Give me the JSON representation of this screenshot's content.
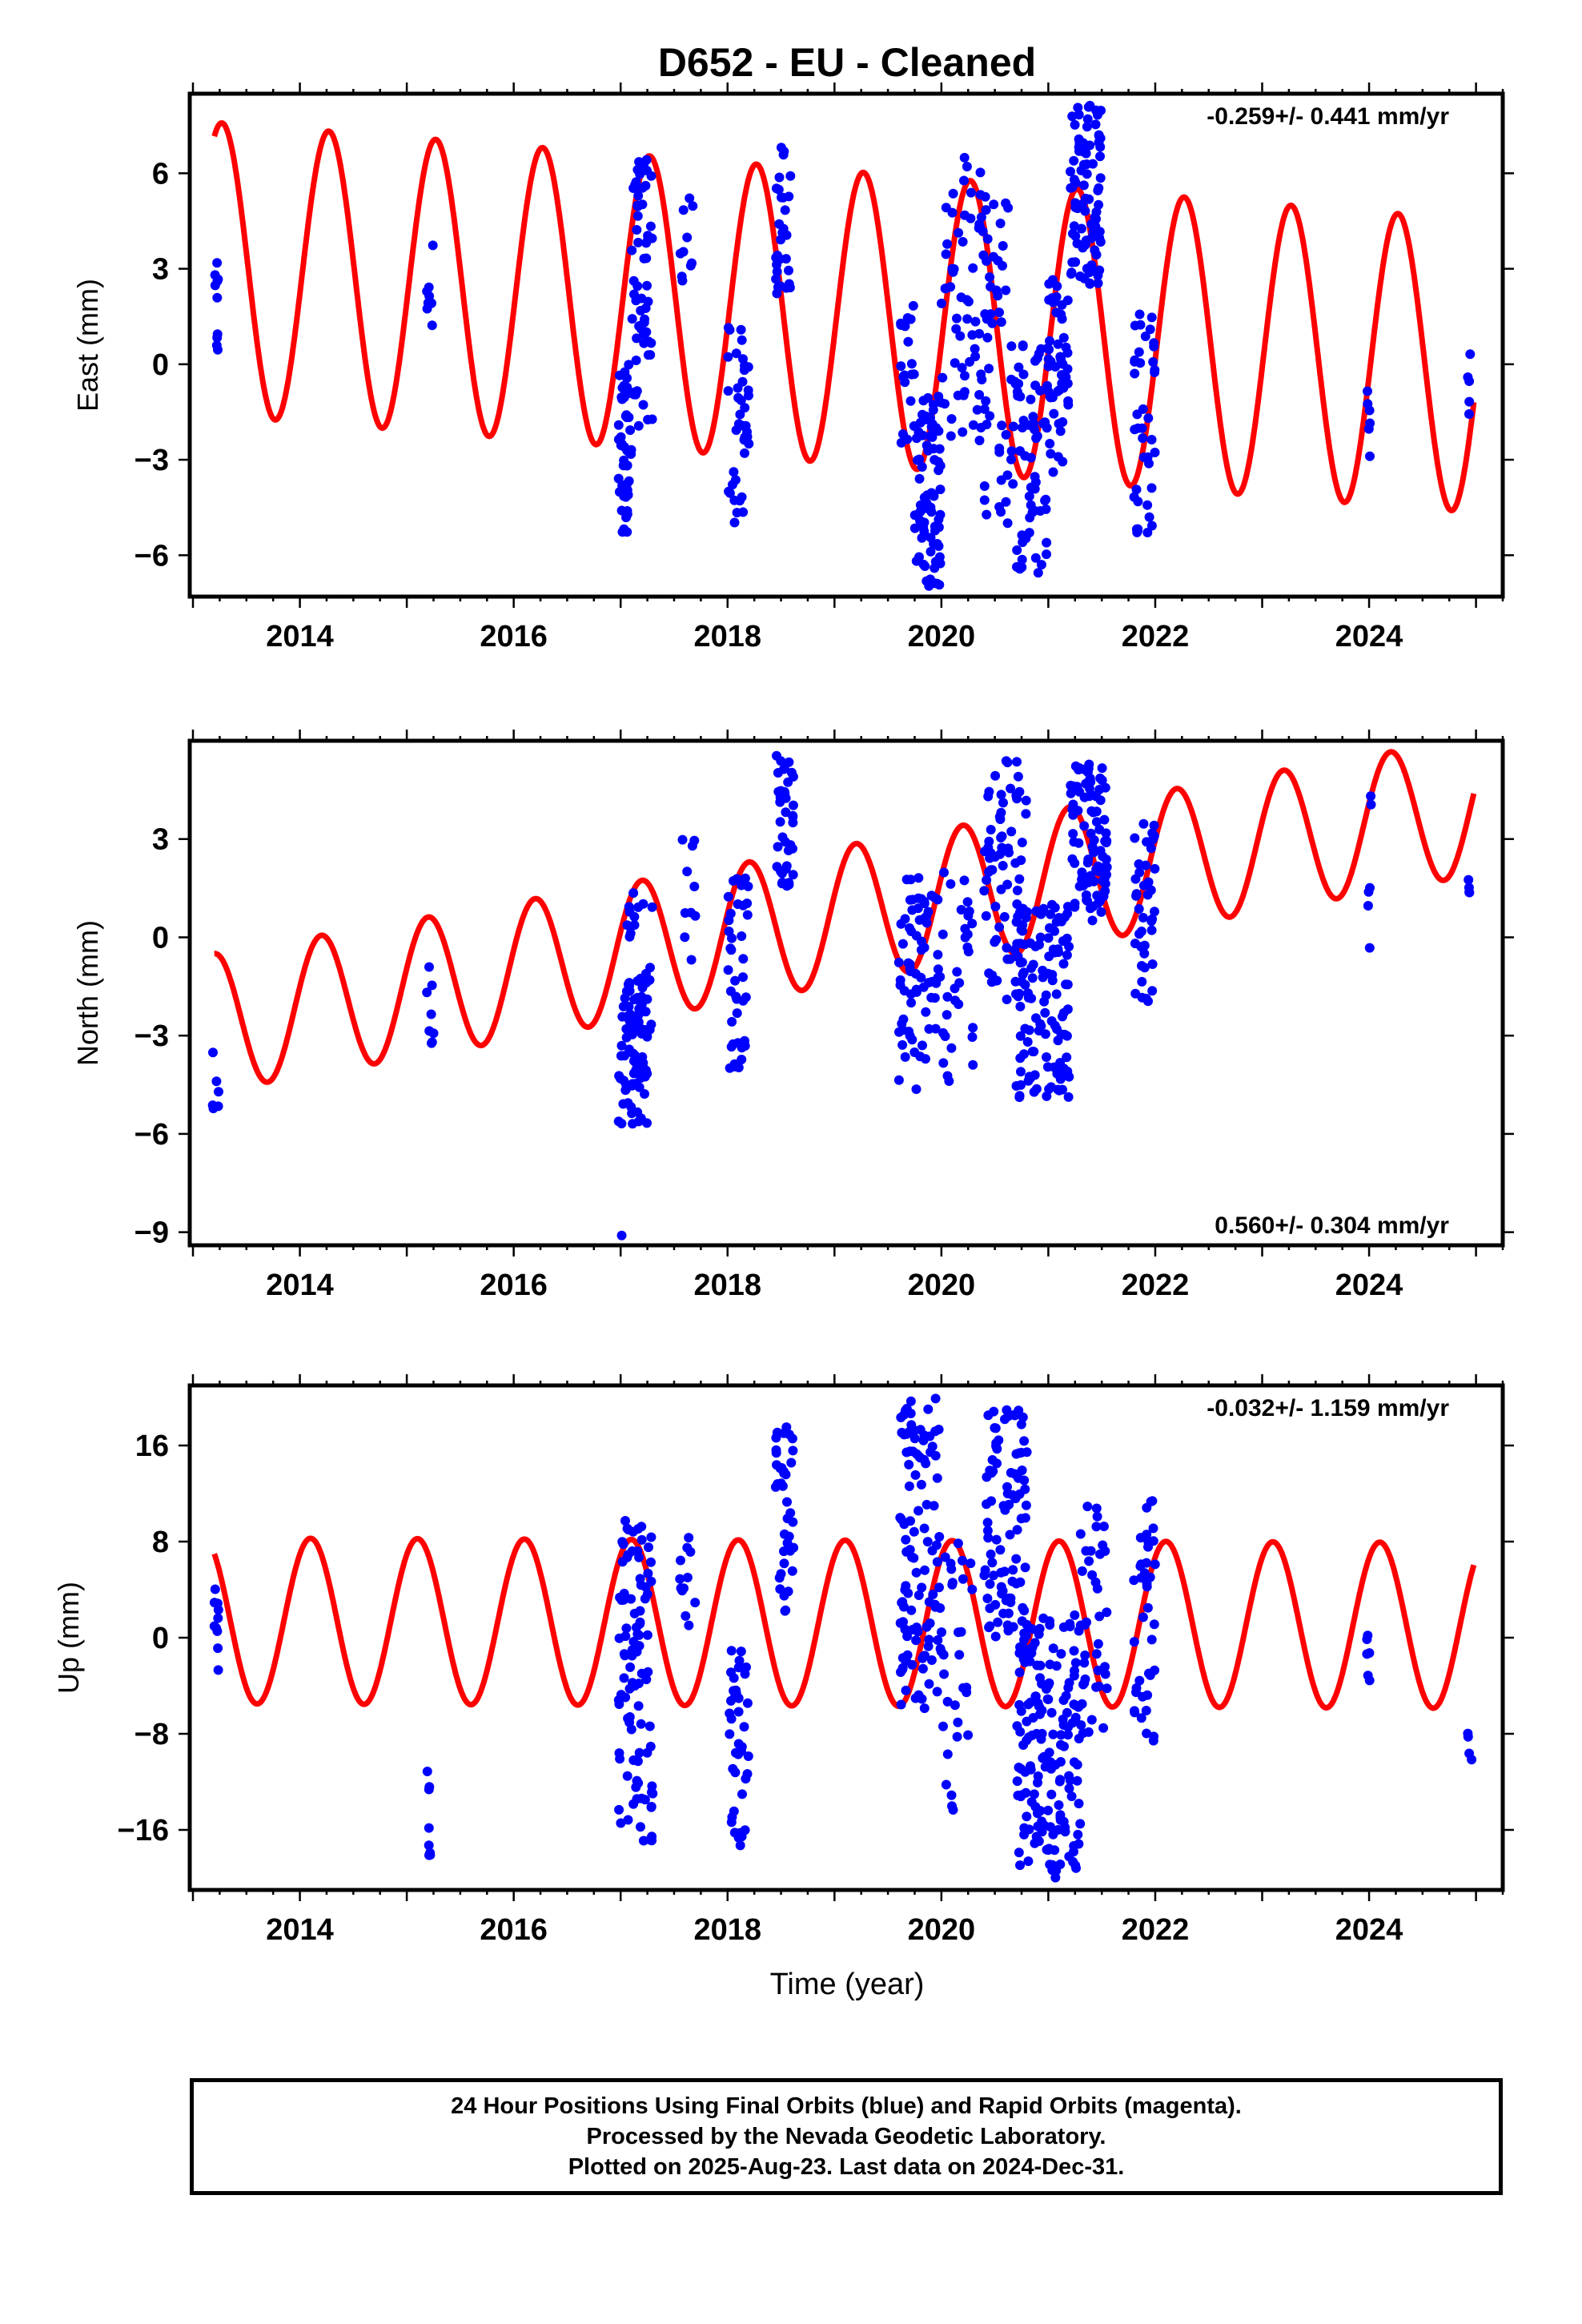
{
  "title": "D652  - EU - Cleaned",
  "xlabel": "Time (year)",
  "colors": {
    "data": "#0000ff",
    "model": "#ff0000",
    "frame": "#000000"
  },
  "footer": {
    "line1": "24 Hour Positions Using Final Orbits (blue) and Rapid Orbits (magenta).",
    "line2": "Processed by the Nevada Geodetic Laboratory.",
    "line3": "Plotted on 2025-Aug-23. Last data on 2024-Dec-31."
  },
  "chart_data": [
    {
      "type": "scatter",
      "id": "east",
      "ylabel": "East (mm)",
      "rate": "-0.259+/- 0.441 mm/yr",
      "rate_position": "top-right",
      "xlim": [
        2012.97,
        2025.25
      ],
      "ylim": [
        -7.3,
        8.5
      ],
      "xticks": [
        2014,
        2016,
        2018,
        2020,
        2022,
        2024
      ],
      "yticks": [
        -6,
        -3,
        0,
        3,
        6
      ],
      "yticklabels": [
        "−6",
        "−3",
        "0",
        "3",
        "6"
      ],
      "model": {
        "name": "model",
        "a0": 3.0,
        "slope": -0.259,
        "amp": 4.6,
        "period": 1.0,
        "phase": 0.43
      },
      "clusters": [
        {
          "t": [
            2013.2,
            2013.24
          ],
          "y": [
            -0.2,
            3.2
          ],
          "n": 10
        },
        {
          "t": [
            2015.18,
            2015.25
          ],
          "y": [
            0.6,
            4.2
          ],
          "n": 8
        },
        {
          "t": [
            2016.98,
            2017.1
          ],
          "y": [
            -5.3,
            0.0
          ],
          "n": 50
        },
        {
          "t": [
            2017.1,
            2017.3
          ],
          "y": [
            -2.0,
            6.5
          ],
          "n": 60
        },
        {
          "t": [
            2017.55,
            2017.7
          ],
          "y": [
            2.5,
            5.5
          ],
          "n": 10
        },
        {
          "t": [
            2018.0,
            2018.2
          ],
          "y": [
            -5.0,
            1.2
          ],
          "n": 40
        },
        {
          "t": [
            2018.45,
            2018.6
          ],
          "y": [
            2.0,
            7.0
          ],
          "n": 30
        },
        {
          "t": [
            2019.6,
            2019.75
          ],
          "y": [
            -2.5,
            2.0
          ],
          "n": 20
        },
        {
          "t": [
            2019.75,
            2020.0
          ],
          "y": [
            -7.0,
            -1.0
          ],
          "n": 80
        },
        {
          "t": [
            2020.0,
            2020.4
          ],
          "y": [
            -2.5,
            6.8
          ],
          "n": 60
        },
        {
          "t": [
            2020.4,
            2020.7
          ],
          "y": [
            -5.0,
            6.2
          ],
          "n": 50
        },
        {
          "t": [
            2020.7,
            2021.0
          ],
          "y": [
            -6.7,
            0.8
          ],
          "n": 60
        },
        {
          "t": [
            2021.0,
            2021.2
          ],
          "y": [
            -3.4,
            3.0
          ],
          "n": 50
        },
        {
          "t": [
            2021.2,
            2021.5
          ],
          "y": [
            2.5,
            8.3
          ],
          "n": 90
        },
        {
          "t": [
            2021.8,
            2022.0
          ],
          "y": [
            -5.4,
            1.6
          ],
          "n": 40
        },
        {
          "t": [
            2023.98,
            2024.02
          ],
          "y": [
            -3.4,
            1.3
          ],
          "n": 6
        },
        {
          "t": [
            2024.92,
            2024.96
          ],
          "y": [
            -1.8,
            0.4
          ],
          "n": 5
        }
      ]
    },
    {
      "type": "scatter",
      "id": "north",
      "ylabel": "North (mm)",
      "rate": "0.560+/- 0.304 mm/yr",
      "rate_position": "bottom-right",
      "xlim": [
        2012.97,
        2025.25
      ],
      "ylim": [
        -9.4,
        6.0
      ],
      "xticks": [
        2014,
        2016,
        2018,
        2020,
        2022,
        2024
      ],
      "yticks": [
        -9,
        -6,
        -3,
        0,
        3
      ],
      "yticklabels": [
        "−9",
        "−6",
        "−3",
        "0",
        "3"
      ],
      "model": {
        "name": "model",
        "a0": -2.6,
        "slope": 0.56,
        "amp": 2.1,
        "period": 1.0,
        "phase": 0.5
      },
      "clusters": [
        {
          "t": [
            2013.18,
            2013.24
          ],
          "y": [
            -5.6,
            -3.1
          ],
          "n": 6
        },
        {
          "t": [
            2015.18,
            2015.25
          ],
          "y": [
            -3.4,
            -0.6
          ],
          "n": 8
        },
        {
          "t": [
            2016.98,
            2017.25
          ],
          "y": [
            -5.7,
            -1.0
          ],
          "n": 80
        },
        {
          "t": [
            2017.05,
            2017.3
          ],
          "y": [
            -3.0,
            1.5
          ],
          "n": 30
        },
        {
          "t": [
            2017.55,
            2017.72
          ],
          "y": [
            -1.2,
            3.0
          ],
          "n": 10
        },
        {
          "t": [
            2018.0,
            2018.2
          ],
          "y": [
            -4.0,
            2.0
          ],
          "n": 40
        },
        {
          "t": [
            2018.45,
            2018.62
          ],
          "y": [
            1.5,
            5.6
          ],
          "n": 40
        },
        {
          "t": [
            2019.6,
            2019.8
          ],
          "y": [
            -5.0,
            2.2
          ],
          "n": 40
        },
        {
          "t": [
            2019.8,
            2020.3
          ],
          "y": [
            -4.5,
            2.0
          ],
          "n": 60
        },
        {
          "t": [
            2020.4,
            2020.8
          ],
          "y": [
            -2.0,
            5.4
          ],
          "n": 70
        },
        {
          "t": [
            2020.7,
            2021.2
          ],
          "y": [
            -4.9,
            1.0
          ],
          "n": 120
        },
        {
          "t": [
            2021.2,
            2021.55
          ],
          "y": [
            0.5,
            5.3
          ],
          "n": 90
        },
        {
          "t": [
            2021.8,
            2022.0
          ],
          "y": [
            -2.5,
            3.6
          ],
          "n": 40
        },
        {
          "t": [
            2023.98,
            2024.02
          ],
          "y": [
            -0.4,
            4.5
          ],
          "n": 6
        },
        {
          "t": [
            2024.92,
            2024.96
          ],
          "y": [
            0.8,
            1.9
          ],
          "n": 4
        }
      ],
      "extra_points": [
        {
          "x": 2017.01,
          "y": -9.1
        }
      ]
    },
    {
      "type": "scatter",
      "id": "up",
      "ylabel": "Up (mm)",
      "rate": "-0.032+/- 1.159 mm/yr",
      "rate_position": "top-right",
      "xlim": [
        2012.97,
        2025.25
      ],
      "ylim": [
        -21,
        21
      ],
      "xticks": [
        2014,
        2016,
        2018,
        2020,
        2022,
        2024
      ],
      "yticks": [
        -16,
        -8,
        0,
        8,
        16
      ],
      "yticklabels": [
        "−16",
        "−8",
        "0",
        "8",
        "16"
      ],
      "model": {
        "name": "model",
        "a0": 1.4,
        "slope": -0.032,
        "amp": 6.9,
        "period": 1.0,
        "phase": 0.6
      },
      "clusters": [
        {
          "t": [
            2013.2,
            2013.24
          ],
          "y": [
            -3.5,
            5.5
          ],
          "n": 10
        },
        {
          "t": [
            2015.18,
            2015.22
          ],
          "y": [
            -18.5,
            -10.8
          ],
          "n": 8
        },
        {
          "t": [
            2016.98,
            2017.3
          ],
          "y": [
            -17.0,
            10.0
          ],
          "n": 100
        },
        {
          "t": [
            2017.55,
            2017.7
          ],
          "y": [
            1.0,
            8.5
          ],
          "n": 12
        },
        {
          "t": [
            2018.0,
            2018.2
          ],
          "y": [
            -17.5,
            -1.0
          ],
          "n": 40
        },
        {
          "t": [
            2018.45,
            2018.62
          ],
          "y": [
            2.0,
            18.0
          ],
          "n": 40
        },
        {
          "t": [
            2019.6,
            2020.0
          ],
          "y": [
            -6.0,
            20.0
          ],
          "n": 110
        },
        {
          "t": [
            2020.0,
            2020.3
          ],
          "y": [
            -15.0,
            8.0
          ],
          "n": 30
        },
        {
          "t": [
            2020.4,
            2020.8
          ],
          "y": [
            0.0,
            19.0
          ],
          "n": 90
        },
        {
          "t": [
            2020.7,
            2021.3
          ],
          "y": [
            -20.0,
            2.0
          ],
          "n": 170
        },
        {
          "t": [
            2021.3,
            2021.55
          ],
          "y": [
            -8.0,
            11.0
          ],
          "n": 40
        },
        {
          "t": [
            2021.8,
            2022.0
          ],
          "y": [
            -9.5,
            12.5
          ],
          "n": 40
        },
        {
          "t": [
            2023.98,
            2024.02
          ],
          "y": [
            -7.0,
            3.5
          ],
          "n": 6
        },
        {
          "t": [
            2024.92,
            2024.96
          ],
          "y": [
            -11.7,
            -6.7
          ],
          "n": 4
        }
      ]
    }
  ]
}
